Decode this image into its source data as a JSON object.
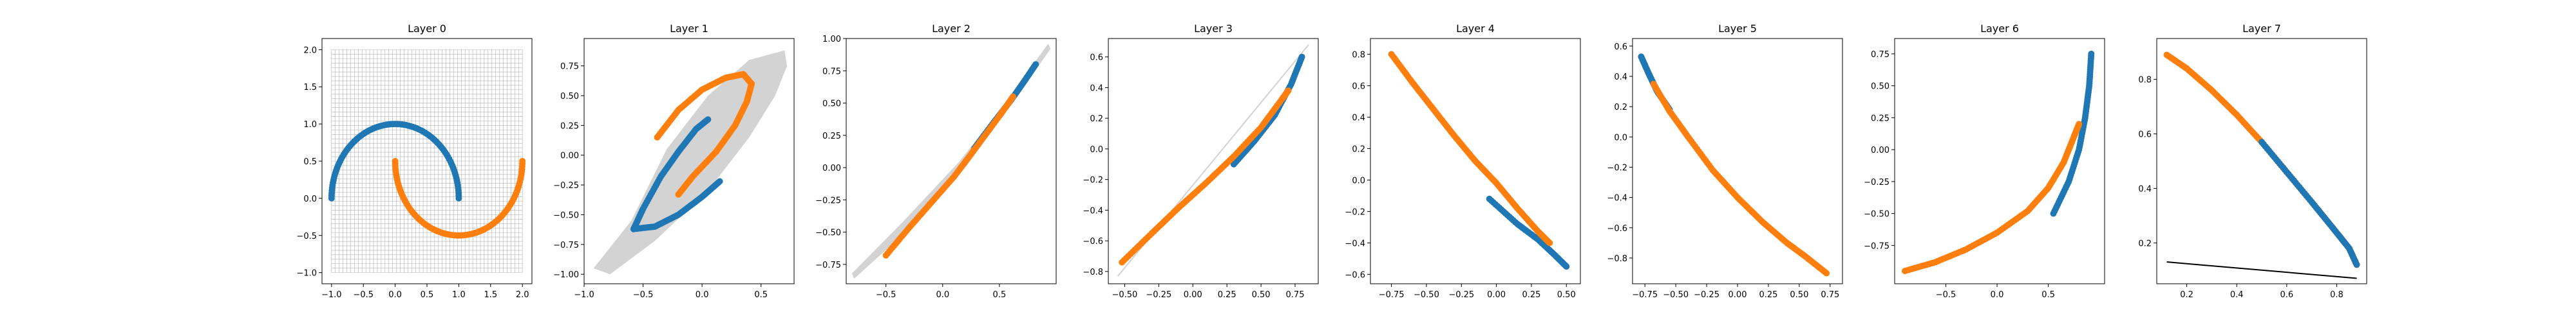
{
  "figure": {
    "colors": {
      "blue": "#1f77b4",
      "orange": "#ff7f0e",
      "region": "#d3d3d3",
      "grid": "#b0b0b0",
      "line": "#000000"
    }
  },
  "chart_data": [
    {
      "type": "scatter",
      "title": "Layer 0",
      "xlim": [
        -1.15,
        2.15
      ],
      "ylim": [
        -1.15,
        2.15
      ],
      "xticks": [
        -1.0,
        -0.5,
        0.0,
        0.5,
        1.0,
        1.5,
        2.0
      ],
      "xtick_labels": [
        "−1.0",
        "−0.5",
        "0.0",
        "0.5",
        "1.0",
        "1.5",
        "2.0"
      ],
      "yticks": [
        -1.0,
        -0.5,
        0.0,
        0.5,
        1.0,
        1.5,
        2.0
      ],
      "ytick_labels": [
        "−1.0",
        "−0.5",
        "0.0",
        "0.5",
        "1.0",
        "1.5",
        "2.0"
      ],
      "grid_mesh": {
        "x_range": [
          -1.0,
          2.0
        ],
        "y_range": [
          -1.0,
          2.0
        ],
        "lines": 50
      },
      "series": [
        {
          "color": "blue",
          "curve": "arc",
          "cx": 0,
          "cy": 0,
          "r": 1,
          "a0": 0,
          "a1": 180
        },
        {
          "color": "orange",
          "curve": "arc",
          "cx": 1,
          "cy": 0.5,
          "r": 1,
          "a0": 180,
          "a1": 360
        }
      ]
    },
    {
      "type": "scatter",
      "title": "Layer 1",
      "xlim": [
        -1.0,
        0.78
      ],
      "ylim": [
        -1.08,
        0.98
      ],
      "xticks": [
        -1.0,
        -0.5,
        0.0,
        0.5
      ],
      "xtick_labels": [
        "−1.0",
        "−0.5",
        "0.0",
        "0.5"
      ],
      "yticks": [
        -1.0,
        -0.75,
        -0.5,
        -0.25,
        0.0,
        0.25,
        0.5,
        0.75
      ],
      "ytick_labels": [
        "−1.00",
        "−0.75",
        "−0.50",
        "−0.25",
        "0.00",
        "0.25",
        "0.50",
        "0.75"
      ],
      "region": [
        [
          -0.92,
          -0.95
        ],
        [
          -0.6,
          -0.55
        ],
        [
          -0.3,
          0.05
        ],
        [
          0.05,
          0.5
        ],
        [
          0.4,
          0.8
        ],
        [
          0.7,
          0.88
        ],
        [
          0.72,
          0.75
        ],
        [
          0.62,
          0.5
        ],
        [
          0.4,
          0.15
        ],
        [
          0.05,
          -0.3
        ],
        [
          -0.4,
          -0.72
        ],
        [
          -0.78,
          -1.0
        ]
      ],
      "series": [
        {
          "color": "blue",
          "curve": "polyline",
          "points": [
            [
              -0.58,
              -0.62
            ],
            [
              -0.5,
              -0.45
            ],
            [
              -0.35,
              -0.18
            ],
            [
              -0.2,
              0.03
            ],
            [
              -0.05,
              0.22
            ],
            [
              0.05,
              0.3
            ]
          ]
        },
        {
          "color": "blue",
          "curve": "polyline",
          "points": [
            [
              -0.58,
              -0.62
            ],
            [
              -0.4,
              -0.6
            ],
            [
              -0.2,
              -0.5
            ],
            [
              0.0,
              -0.35
            ],
            [
              0.15,
              -0.22
            ]
          ]
        },
        {
          "color": "orange",
          "curve": "polyline",
          "points": [
            [
              -0.38,
              0.15
            ],
            [
              -0.2,
              0.38
            ],
            [
              0.0,
              0.55
            ],
            [
              0.2,
              0.65
            ],
            [
              0.35,
              0.68
            ],
            [
              0.42,
              0.6
            ]
          ]
        },
        {
          "color": "orange",
          "curve": "polyline",
          "points": [
            [
              0.42,
              0.6
            ],
            [
              0.38,
              0.45
            ],
            [
              0.28,
              0.25
            ],
            [
              0.12,
              0.03
            ],
            [
              -0.08,
              -0.18
            ],
            [
              -0.2,
              -0.33
            ]
          ]
        }
      ]
    },
    {
      "type": "scatter",
      "title": "Layer 2",
      "xlim": [
        -0.85,
        1.0
      ],
      "ylim": [
        -0.9,
        1.0
      ],
      "xticks": [
        -0.5,
        0.0,
        0.5
      ],
      "xtick_labels": [
        "−0.5",
        "0.0",
        "0.5"
      ],
      "yticks": [
        -0.75,
        -0.5,
        -0.25,
        0.0,
        0.25,
        0.5,
        0.75,
        1.0
      ],
      "ytick_labels": [
        "−0.75",
        "−0.50",
        "−0.25",
        "0.00",
        "0.25",
        "0.50",
        "0.75",
        "1.00"
      ],
      "region": [
        [
          -0.78,
          -0.86
        ],
        [
          -0.3,
          -0.48
        ],
        [
          0.2,
          0.0
        ],
        [
          0.6,
          0.48
        ],
        [
          0.95,
          0.92
        ],
        [
          0.93,
          0.96
        ],
        [
          0.55,
          0.5
        ],
        [
          0.15,
          0.05
        ],
        [
          -0.35,
          -0.42
        ],
        [
          -0.8,
          -0.82
        ]
      ],
      "series": [
        {
          "color": "blue",
          "curve": "polyline",
          "points": [
            [
              0.28,
              0.15
            ],
            [
              0.45,
              0.35
            ],
            [
              0.6,
              0.52
            ],
            [
              0.72,
              0.67
            ],
            [
              0.82,
              0.8
            ]
          ]
        },
        {
          "color": "orange",
          "curve": "polyline",
          "points": [
            [
              -0.5,
              -0.68
            ],
            [
              -0.3,
              -0.47
            ],
            [
              -0.1,
              -0.27
            ],
            [
              0.1,
              -0.07
            ],
            [
              0.28,
              0.14
            ],
            [
              0.5,
              0.4
            ],
            [
              0.62,
              0.55
            ]
          ]
        }
      ]
    },
    {
      "type": "scatter",
      "title": "Layer 3",
      "xlim": [
        -0.62,
        0.92
      ],
      "ylim": [
        -0.88,
        0.72
      ],
      "xticks": [
        -0.5,
        -0.25,
        0.0,
        0.25,
        0.5,
        0.75
      ],
      "xtick_labels": [
        "−0.50",
        "−0.25",
        "0.00",
        "0.25",
        "0.50",
        "0.75"
      ],
      "yticks": [
        -0.8,
        -0.6,
        -0.4,
        -0.2,
        0.0,
        0.2,
        0.4,
        0.6
      ],
      "ytick_labels": [
        "−0.8",
        "−0.6",
        "−0.4",
        "−0.2",
        "0.0",
        "0.2",
        "0.4",
        "0.6"
      ],
      "guide": [
        [
          -0.55,
          -0.83
        ],
        [
          0.85,
          0.68
        ]
      ],
      "series": [
        {
          "color": "blue",
          "curve": "polyline",
          "points": [
            [
              0.3,
              -0.1
            ],
            [
              0.45,
              0.05
            ],
            [
              0.6,
              0.22
            ],
            [
              0.72,
              0.42
            ],
            [
              0.8,
              0.6
            ]
          ]
        },
        {
          "color": "orange",
          "curve": "polyline",
          "points": [
            [
              -0.52,
              -0.74
            ],
            [
              -0.3,
              -0.55
            ],
            [
              -0.1,
              -0.38
            ],
            [
              0.1,
              -0.22
            ],
            [
              0.3,
              -0.05
            ],
            [
              0.5,
              0.14
            ],
            [
              0.65,
              0.32
            ],
            [
              0.7,
              0.38
            ]
          ]
        }
      ]
    },
    {
      "type": "scatter",
      "title": "Layer 4",
      "xlim": [
        -0.9,
        0.6
      ],
      "ylim": [
        -0.66,
        0.9
      ],
      "xticks": [
        -0.75,
        -0.5,
        -0.25,
        0.0,
        0.25,
        0.5
      ],
      "xtick_labels": [
        "−0.75",
        "−0.50",
        "−0.25",
        "0.00",
        "0.25",
        "0.50"
      ],
      "yticks": [
        -0.6,
        -0.4,
        -0.2,
        0.0,
        0.2,
        0.4,
        0.6,
        0.8
      ],
      "ytick_labels": [
        "−0.6",
        "−0.4",
        "−0.2",
        "0.0",
        "0.2",
        "0.4",
        "0.6",
        "0.8"
      ],
      "series": [
        {
          "color": "blue",
          "curve": "polyline",
          "points": [
            [
              -0.05,
              -0.12
            ],
            [
              0.15,
              -0.28
            ],
            [
              0.3,
              -0.38
            ],
            [
              0.42,
              -0.48
            ],
            [
              0.5,
              -0.55
            ]
          ]
        },
        {
          "color": "orange",
          "curve": "polyline",
          "points": [
            [
              -0.75,
              0.8
            ],
            [
              -0.6,
              0.62
            ],
            [
              -0.45,
              0.45
            ],
            [
              -0.3,
              0.28
            ],
            [
              -0.15,
              0.12
            ],
            [
              0.0,
              -0.02
            ],
            [
              0.15,
              -0.18
            ],
            [
              0.3,
              -0.33
            ],
            [
              0.38,
              -0.4
            ]
          ]
        }
      ]
    },
    {
      "type": "scatter",
      "title": "Layer 5",
      "xlim": [
        -0.85,
        0.85
      ],
      "ylim": [
        -0.97,
        0.65
      ],
      "xticks": [
        -0.75,
        -0.5,
        -0.25,
        0.0,
        0.25,
        0.5,
        0.75
      ],
      "xtick_labels": [
        "−0.75",
        "−0.50",
        "−0.25",
        "0.00",
        "0.25",
        "0.50",
        "0.75"
      ],
      "yticks": [
        -0.8,
        -0.6,
        -0.4,
        -0.2,
        0.0,
        0.2,
        0.4,
        0.6
      ],
      "ytick_labels": [
        "−0.8",
        "−0.6",
        "−0.4",
        "−0.2",
        "0.0",
        "0.2",
        "0.4",
        "0.6"
      ],
      "series": [
        {
          "color": "blue",
          "curve": "polyline",
          "points": [
            [
              -0.78,
              0.53
            ],
            [
              -0.72,
              0.42
            ],
            [
              -0.65,
              0.3
            ],
            [
              -0.55,
              0.18
            ]
          ]
        },
        {
          "color": "orange",
          "curve": "polyline",
          "points": [
            [
              -0.68,
              0.35
            ],
            [
              -0.55,
              0.17
            ],
            [
              -0.4,
              0.0
            ],
            [
              -0.2,
              -0.22
            ],
            [
              0.0,
              -0.4
            ],
            [
              0.2,
              -0.56
            ],
            [
              0.4,
              -0.7
            ],
            [
              0.55,
              -0.79
            ],
            [
              0.72,
              -0.9
            ]
          ]
        }
      ]
    },
    {
      "type": "scatter",
      "title": "Layer 6",
      "xlim": [
        -1.0,
        1.05
      ],
      "ylim": [
        -1.05,
        0.87
      ],
      "xticks": [
        -0.5,
        0.0,
        0.5
      ],
      "xtick_labels": [
        "−0.5",
        "0.0",
        "0.5"
      ],
      "yticks": [
        -0.75,
        -0.5,
        -0.25,
        0.0,
        0.25,
        0.5,
        0.75
      ],
      "ytick_labels": [
        "−0.75",
        "−0.50",
        "−0.25",
        "0.00",
        "0.25",
        "0.50",
        "0.75"
      ],
      "series": [
        {
          "color": "blue",
          "curve": "polyline",
          "points": [
            [
              0.55,
              -0.5
            ],
            [
              0.7,
              -0.25
            ],
            [
              0.8,
              0.0
            ],
            [
              0.86,
              0.25
            ],
            [
              0.9,
              0.5
            ],
            [
              0.92,
              0.75
            ]
          ]
        },
        {
          "color": "orange",
          "curve": "polyline",
          "points": [
            [
              -0.9,
              -0.95
            ],
            [
              -0.6,
              -0.88
            ],
            [
              -0.3,
              -0.78
            ],
            [
              0.0,
              -0.65
            ],
            [
              0.3,
              -0.48
            ],
            [
              0.5,
              -0.3
            ],
            [
              0.65,
              -0.1
            ],
            [
              0.75,
              0.1
            ],
            [
              0.8,
              0.2
            ]
          ]
        }
      ]
    },
    {
      "type": "scatter",
      "title": "Layer 7",
      "xlim": [
        0.08,
        0.92
      ],
      "ylim": [
        0.05,
        0.95
      ],
      "xticks": [
        0.2,
        0.4,
        0.6,
        0.8
      ],
      "xtick_labels": [
        "0.2",
        "0.4",
        "0.6",
        "0.8"
      ],
      "yticks": [
        0.2,
        0.4,
        0.6,
        0.8
      ],
      "ytick_labels": [
        "0.2",
        "0.4",
        "0.6",
        "0.8"
      ],
      "line": [
        [
          0.12,
          0.13
        ],
        [
          0.88,
          0.07
        ]
      ],
      "series": [
        {
          "color": "orange",
          "curve": "polyline",
          "points": [
            [
              0.12,
              0.89
            ],
            [
              0.2,
              0.84
            ],
            [
              0.3,
              0.76
            ],
            [
              0.4,
              0.67
            ],
            [
              0.5,
              0.57
            ],
            [
              0.6,
              0.46
            ],
            [
              0.7,
              0.35
            ],
            [
              0.78,
              0.26
            ],
            [
              0.85,
              0.18
            ],
            [
              0.88,
              0.12
            ]
          ]
        },
        {
          "color": "blue",
          "curve": "polyline",
          "points": [
            [
              0.5,
              0.57
            ],
            [
              0.6,
              0.46
            ],
            [
              0.7,
              0.35
            ],
            [
              0.78,
              0.26
            ],
            [
              0.85,
              0.18
            ],
            [
              0.88,
              0.12
            ]
          ]
        }
      ]
    }
  ]
}
